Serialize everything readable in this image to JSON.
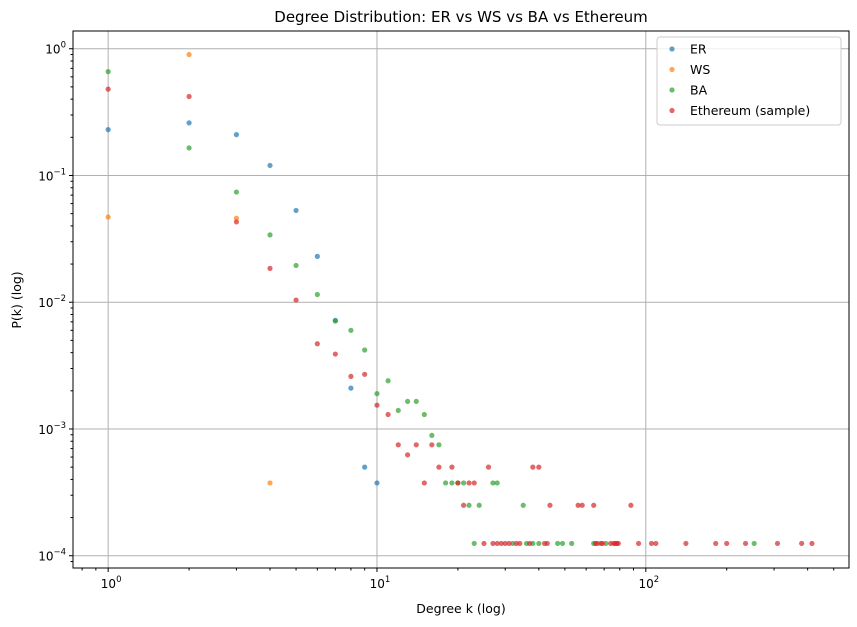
{
  "chart_data": {
    "type": "scatter",
    "title": "Degree Distribution: ER vs WS vs BA vs Ethereum",
    "xlabel": "Degree k (log)",
    "ylabel": "P(k) (log)",
    "xscale": "log",
    "yscale": "log",
    "xlim": [
      0.74,
      570
    ],
    "ylim": [
      8e-05,
      1.38
    ],
    "x_ticks": [
      {
        "base": "10",
        "exp": "0",
        "value": 1
      },
      {
        "base": "10",
        "exp": "1",
        "value": 10
      },
      {
        "base": "10",
        "exp": "2",
        "value": 100
      }
    ],
    "y_ticks": [
      {
        "base": "10",
        "exp": "−4",
        "value": 0.0001
      },
      {
        "base": "10",
        "exp": "−3",
        "value": 0.001
      },
      {
        "base": "10",
        "exp": "−2",
        "value": 0.01
      },
      {
        "base": "10",
        "exp": "−1",
        "value": 0.1
      },
      {
        "base": "10",
        "exp": "0",
        "value": 1
      }
    ],
    "grid": true,
    "legend_position": "top-right",
    "series": [
      {
        "name": "ER",
        "color": "#1f77b4",
        "points": [
          [
            1,
            0.23
          ],
          [
            2,
            0.26
          ],
          [
            3,
            0.21
          ],
          [
            4,
            0.12
          ],
          [
            5,
            0.053
          ],
          [
            6,
            0.023
          ],
          [
            7,
            0.0072
          ],
          [
            8,
            0.0021
          ],
          [
            9,
            0.0005
          ],
          [
            10,
            0.000375
          ]
        ]
      },
      {
        "name": "WS",
        "color": "#ff7f0e",
        "points": [
          [
            1,
            0.047
          ],
          [
            2,
            0.9
          ],
          [
            3,
            0.046
          ],
          [
            4,
            0.000375
          ]
        ]
      },
      {
        "name": "BA",
        "color": "#2ca02c",
        "points": [
          [
            1,
            0.66
          ],
          [
            2,
            0.165
          ],
          [
            3,
            0.074
          ],
          [
            4,
            0.034
          ],
          [
            5,
            0.0195
          ],
          [
            6,
            0.0115
          ],
          [
            7,
            0.0071
          ],
          [
            8,
            0.006
          ],
          [
            9,
            0.0042
          ],
          [
            10,
            0.0019
          ],
          [
            11,
            0.0024
          ],
          [
            12,
            0.0014
          ],
          [
            13,
            0.00165
          ],
          [
            14,
            0.00165
          ],
          [
            15,
            0.0013
          ],
          [
            16,
            0.00089
          ],
          [
            17,
            0.00075
          ],
          [
            18,
            0.000375
          ],
          [
            19,
            0.000375
          ],
          [
            20,
            0.000375
          ],
          [
            21,
            0.000375
          ],
          [
            22,
            0.00025
          ],
          [
            24,
            0.00025
          ],
          [
            27,
            0.000375
          ],
          [
            28,
            0.000375
          ],
          [
            35,
            0.00025
          ],
          [
            23,
            0.000125
          ],
          [
            32,
            0.000125
          ],
          [
            36,
            0.000125
          ],
          [
            38,
            0.000125
          ],
          [
            40,
            0.000125
          ],
          [
            47,
            0.000125
          ],
          [
            49,
            0.000125
          ],
          [
            53,
            0.000125
          ],
          [
            64,
            0.000125
          ],
          [
            71,
            0.000125
          ],
          [
            253,
            0.000125
          ]
        ]
      },
      {
        "name": "Ethereum (sample)",
        "color": "#d62728",
        "points": [
          [
            1,
            0.48
          ],
          [
            2,
            0.42
          ],
          [
            3,
            0.043
          ],
          [
            4,
            0.0185
          ],
          [
            5,
            0.0104
          ],
          [
            6,
            0.0047
          ],
          [
            7,
            0.0039
          ],
          [
            8,
            0.0026
          ],
          [
            9,
            0.0027
          ],
          [
            10,
            0.00154
          ],
          [
            11,
            0.0013
          ],
          [
            12,
            0.00075
          ],
          [
            13,
            0.000625
          ],
          [
            14,
            0.00075
          ],
          [
            15,
            0.000375
          ],
          [
            16,
            0.00075
          ],
          [
            17,
            0.0005
          ],
          [
            19,
            0.0005
          ],
          [
            20,
            0.000375
          ],
          [
            21,
            0.00025
          ],
          [
            22,
            0.000375
          ],
          [
            23,
            0.000375
          ],
          [
            26,
            0.0005
          ],
          [
            38,
            0.0005
          ],
          [
            40,
            0.0005
          ],
          [
            44,
            0.00025
          ],
          [
            56,
            0.00025
          ],
          [
            58,
            0.00025
          ],
          [
            64,
            0.00025
          ],
          [
            88,
            0.00025
          ],
          [
            25,
            0.000125
          ],
          [
            27,
            0.000125
          ],
          [
            28,
            0.000125
          ],
          [
            29,
            0.000125
          ],
          [
            30,
            0.000125
          ],
          [
            31,
            0.000125
          ],
          [
            33,
            0.000125
          ],
          [
            34,
            0.000125
          ],
          [
            37,
            0.000125
          ],
          [
            42,
            0.000125
          ],
          [
            43,
            0.000125
          ],
          [
            65,
            0.000125
          ],
          [
            66,
            0.000125
          ],
          [
            68,
            0.000125
          ],
          [
            69,
            0.000125
          ],
          [
            74,
            0.000125
          ],
          [
            76,
            0.000125
          ],
          [
            77,
            0.000125
          ],
          [
            78,
            0.000125
          ],
          [
            79,
            0.000125
          ],
          [
            94,
            0.000125
          ],
          [
            105,
            0.000125
          ],
          [
            109,
            0.000125
          ],
          [
            141,
            0.000125
          ],
          [
            182,
            0.000125
          ],
          [
            200,
            0.000125
          ],
          [
            235,
            0.000125
          ],
          [
            309,
            0.000125
          ],
          [
            380,
            0.000125
          ],
          [
            415,
            0.000125
          ]
        ]
      }
    ]
  }
}
